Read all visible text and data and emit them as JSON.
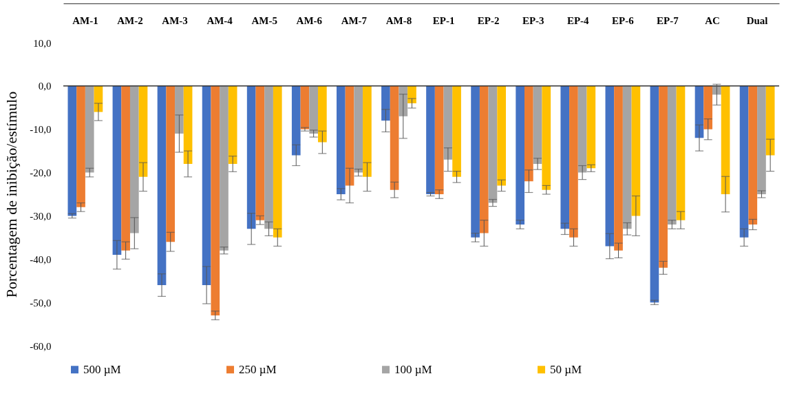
{
  "chart_data": {
    "type": "bar",
    "ylabel": "Porcentagem de inibição/estímulo",
    "categories": [
      "AM-1",
      "AM-2",
      "AM-3",
      "AM-4",
      "AM-5",
      "AM-6",
      "AM-7",
      "AM-8",
      "EP-1",
      "EP-2",
      "EP-3",
      "EP-4",
      "EP-6",
      "EP-7",
      "AC",
      "Dual"
    ],
    "series": [
      {
        "name": "500 µM",
        "color": "#4472c4",
        "values": [
          -30,
          -39,
          -46,
          -46,
          -33,
          -16,
          -25,
          -8,
          -25,
          -35,
          -32,
          -33,
          -37,
          -50,
          -12,
          -35
        ],
        "errors": [
          0.5,
          3.3,
          2.6,
          4.3,
          3.6,
          2.4,
          1.3,
          2.6,
          0.4,
          1,
          1,
          1.3,
          2.9,
          0.5,
          3,
          2
        ]
      },
      {
        "name": "250 µM",
        "color": "#ed7d31",
        "values": [
          -28,
          -38,
          -36,
          -53,
          -31,
          -10,
          -23,
          -24,
          -25,
          -34,
          -22,
          -35,
          -38,
          -42,
          -10,
          -32
        ],
        "errors": [
          1,
          2,
          2.2,
          1,
          1,
          0.4,
          4,
          1.8,
          1,
          3,
          2.6,
          2,
          1.7,
          1.5,
          2.4,
          1.2
        ]
      },
      {
        "name": "100 µM",
        "color": "#a5a5a5",
        "values": [
          -20,
          -34,
          -11,
          -38,
          -33,
          -11,
          -20,
          -7,
          -17,
          -27,
          -18,
          -20,
          -33,
          -32,
          -2,
          -25
        ],
        "errors": [
          1,
          3.6,
          4.3,
          0.8,
          1.6,
          0.8,
          0.8,
          5.1,
          2.7,
          0.8,
          1.3,
          1.6,
          1.4,
          1,
          2.4,
          0.8
        ]
      },
      {
        "name": "50 µM",
        "color": "#ffc000",
        "values": [
          -6,
          -21,
          -18,
          -18,
          -35,
          -13,
          -21,
          -4,
          -21,
          -23,
          -24,
          -19,
          -30,
          -31,
          -25,
          -16
        ],
        "errors": [
          2,
          3.3,
          3,
          1.8,
          2,
          2.6,
          3.3,
          1.1,
          1.3,
          1.3,
          1,
          0.8,
          4.6,
          2,
          4.1,
          3.7
        ]
      }
    ],
    "ylim": [
      -60,
      10
    ],
    "yticks": [
      {
        "value": 10,
        "label": "10,0"
      },
      {
        "value": 0,
        "label": "0,0"
      },
      {
        "value": -10,
        "label": "-10,0"
      },
      {
        "value": -20,
        "label": "-20,0"
      },
      {
        "value": -30,
        "label": "-30,0"
      },
      {
        "value": -40,
        "label": "-40,0"
      },
      {
        "value": -50,
        "label": "-50,0"
      },
      {
        "value": -60,
        "label": "-60,0"
      }
    ],
    "ref_lines": [
      {
        "axis": "y",
        "value": 0,
        "color": "#333333"
      }
    ],
    "grid": false,
    "legend": "bottom"
  }
}
